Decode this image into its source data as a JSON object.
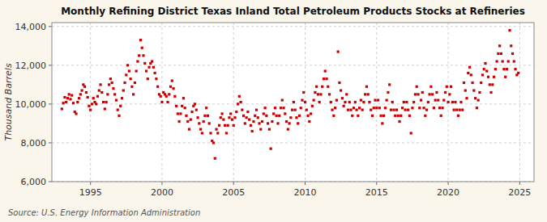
{
  "chart_data": {
    "type": "scatter",
    "title": "Monthly Refining District Texas Inland Total Petroleum Products Stocks at Refineries",
    "y_label": "Thousand Barrels",
    "annotations": [
      "Source: U.S. Energy Information Administration"
    ],
    "color": "#cc0000",
    "marker": "square",
    "grid": true,
    "xlim": [
      1992.3,
      2026.0
    ],
    "ylim": [
      6000,
      14200
    ],
    "xticks": [
      1995,
      2000,
      2005,
      2010,
      2015,
      2020,
      2025
    ],
    "yticks": [
      {
        "value": 6000,
        "label": "6,000"
      },
      {
        "value": 8000,
        "label": "8,000"
      },
      {
        "value": 10000,
        "label": "10,000"
      },
      {
        "value": 12000,
        "label": "12,000"
      },
      {
        "value": 14000,
        "label": "14,000"
      }
    ],
    "x": [
      1993.0,
      1993.1,
      1993.2,
      1993.3,
      1993.4,
      1993.5,
      1993.6,
      1993.7,
      1993.8,
      1993.9,
      1994.0,
      1994.1,
      1994.2,
      1994.3,
      1994.4,
      1994.5,
      1994.6,
      1994.7,
      1994.8,
      1994.9,
      1995.0,
      1995.1,
      1995.2,
      1995.3,
      1995.4,
      1995.5,
      1995.6,
      1995.7,
      1995.8,
      1995.9,
      1996.0,
      1996.1,
      1996.2,
      1996.3,
      1996.4,
      1996.5,
      1996.6,
      1996.7,
      1996.8,
      1996.9,
      1997.0,
      1997.1,
      1997.2,
      1997.3,
      1997.4,
      1997.5,
      1997.6,
      1997.7,
      1997.8,
      1997.9,
      1998.0,
      1998.1,
      1998.2,
      1998.3,
      1998.4,
      1998.5,
      1998.6,
      1998.7,
      1998.8,
      1998.9,
      1999.0,
      1999.1,
      1999.2,
      1999.3,
      1999.4,
      1999.5,
      1999.6,
      1999.7,
      1999.8,
      1999.9,
      2000.0,
      2000.1,
      2000.2,
      2000.3,
      2000.4,
      2000.5,
      2000.6,
      2000.7,
      2000.8,
      2000.9,
      2001.0,
      2001.1,
      2001.2,
      2001.3,
      2001.4,
      2001.5,
      2001.6,
      2001.7,
      2001.8,
      2001.9,
      2002.0,
      2002.1,
      2002.2,
      2002.3,
      2002.4,
      2002.5,
      2002.6,
      2002.7,
      2002.8,
      2002.9,
      2003.0,
      2003.1,
      2003.2,
      2003.3,
      2003.4,
      2003.5,
      2003.6,
      2003.7,
      2003.8,
      2003.9,
      2004.0,
      2004.1,
      2004.2,
      2004.3,
      2004.4,
      2004.5,
      2004.6,
      2004.7,
      2004.8,
      2004.9,
      2005.0,
      2005.1,
      2005.2,
      2005.3,
      2005.4,
      2005.5,
      2005.6,
      2005.7,
      2005.8,
      2005.9,
      2006.0,
      2006.1,
      2006.2,
      2006.3,
      2006.4,
      2006.5,
      2006.6,
      2006.7,
      2006.8,
      2006.9,
      2007.0,
      2007.1,
      2007.2,
      2007.3,
      2007.4,
      2007.5,
      2007.6,
      2007.7,
      2007.8,
      2007.9,
      2008.0,
      2008.1,
      2008.2,
      2008.3,
      2008.4,
      2008.5,
      2008.6,
      2008.7,
      2008.8,
      2008.9,
      2009.0,
      2009.1,
      2009.2,
      2009.3,
      2009.4,
      2009.5,
      2009.6,
      2009.7,
      2009.8,
      2009.9,
      2010.0,
      2010.1,
      2010.2,
      2010.3,
      2010.4,
      2010.5,
      2010.6,
      2010.7,
      2010.8,
      2010.9,
      2011.0,
      2011.1,
      2011.2,
      2011.3,
      2011.4,
      2011.5,
      2011.6,
      2011.7,
      2011.8,
      2011.9,
      2012.0,
      2012.1,
      2012.2,
      2012.3,
      2012.4,
      2012.5,
      2012.6,
      2012.7,
      2012.8,
      2012.9,
      2013.0,
      2013.1,
      2013.2,
      2013.3,
      2013.4,
      2013.5,
      2013.6,
      2013.7,
      2013.8,
      2013.9,
      2014.0,
      2014.1,
      2014.2,
      2014.3,
      2014.4,
      2014.5,
      2014.6,
      2014.7,
      2014.8,
      2014.9,
      2015.0,
      2015.1,
      2015.2,
      2015.3,
      2015.4,
      2015.5,
      2015.6,
      2015.7,
      2015.8,
      2015.9,
      2016.0,
      2016.1,
      2016.2,
      2016.3,
      2016.4,
      2016.5,
      2016.6,
      2016.7,
      2016.8,
      2016.9,
      2017.0,
      2017.1,
      2017.2,
      2017.3,
      2017.4,
      2017.5,
      2017.6,
      2017.7,
      2017.8,
      2017.9,
      2018.0,
      2018.1,
      2018.2,
      2018.3,
      2018.4,
      2018.5,
      2018.6,
      2018.7,
      2018.8,
      2018.9,
      2019.0,
      2019.1,
      2019.2,
      2019.3,
      2019.4,
      2019.5,
      2019.6,
      2019.7,
      2019.8,
      2019.9,
      2020.0,
      2020.1,
      2020.2,
      2020.3,
      2020.4,
      2020.5,
      2020.6,
      2020.7,
      2020.8,
      2020.9,
      2021.0,
      2021.1,
      2021.2,
      2021.3,
      2021.4,
      2021.5,
      2021.6,
      2021.7,
      2021.8,
      2021.9,
      2022.0,
      2022.1,
      2022.2,
      2022.3,
      2022.4,
      2022.5,
      2022.6,
      2022.7,
      2022.8,
      2022.9,
      2023.0,
      2023.1,
      2023.2,
      2023.3,
      2023.4,
      2023.5,
      2023.6,
      2023.7,
      2023.8,
      2023.9,
      2024.0,
      2024.1,
      2024.2,
      2024.3,
      2024.4,
      2024.5,
      2024.6,
      2024.7,
      2024.8,
      2024.9
    ],
    "values": [
      9750,
      10050,
      10350,
      10100,
      10300,
      10500,
      10250,
      10450,
      10050,
      9600,
      9500,
      10100,
      10300,
      10500,
      10700,
      11000,
      10900,
      10600,
      10350,
      9900,
      9700,
      10000,
      10300,
      10100,
      10000,
      10400,
      10700,
      11000,
      10600,
      10100,
      9750,
      10100,
      10500,
      11000,
      11300,
      11100,
      10800,
      10500,
      10200,
      9700,
      9400,
      9900,
      10300,
      10700,
      11100,
      11500,
      12000,
      11700,
      11300,
      10900,
      10500,
      11100,
      11700,
      12200,
      12500,
      13300,
      12900,
      12500,
      12100,
      11700,
      11300,
      11900,
      12100,
      12200,
      11900,
      11600,
      11300,
      10900,
      10500,
      10400,
      10100,
      10600,
      10500,
      10400,
      10100,
      10500,
      10900,
      11200,
      10800,
      10400,
      9900,
      9500,
      9100,
      9500,
      9900,
      10300,
      9800,
      9400,
      9100,
      8700,
      9200,
      9600,
      9900,
      10000,
      9700,
      9300,
      9000,
      8700,
      8500,
      9100,
      9400,
      9800,
      9400,
      9000,
      8500,
      8100,
      8000,
      7200,
      8700,
      8500,
      8900,
      9300,
      9500,
      9200,
      8900,
      8500,
      8900,
      9300,
      9500,
      9200,
      8900,
      9300,
      9600,
      10000,
      10400,
      10100,
      9700,
      9400,
      9000,
      9300,
      9600,
      9200,
      8900,
      8600,
      9100,
      9400,
      9700,
      9300,
      9000,
      8700,
      9100,
      9500,
      9800,
      9400,
      9000,
      8700,
      7700,
      9100,
      9500,
      9800,
      9400,
      9000,
      9400,
      9800,
      10200,
      9800,
      9500,
      9100,
      8700,
      9000,
      9300,
      9700,
      10100,
      9700,
      9300,
      9000,
      9400,
      9800,
      10200,
      10600,
      10100,
      9700,
      9400,
      9100,
      9500,
      9900,
      10200,
      10600,
      10900,
      10500,
      10100,
      10500,
      10900,
      11300,
      11700,
      11300,
      10900,
      10500,
      10100,
      9700,
      9400,
      9800,
      10200,
      12700,
      11100,
      10700,
      10300,
      9900,
      10100,
      10500,
      9700,
      10100,
      9700,
      9400,
      9800,
      10100,
      9700,
      9400,
      9800,
      10200,
      9700,
      10100,
      10500,
      10900,
      10500,
      10100,
      9700,
      9400,
      9800,
      10200,
      9800,
      10200,
      9800,
      9400,
      9000,
      9400,
      9800,
      10200,
      10600,
      11000,
      9700,
      10100,
      9700,
      9400,
      9700,
      9400,
      9100,
      9400,
      9800,
      10100,
      9700,
      10100,
      9700,
      9400,
      8500,
      9800,
      10100,
      10500,
      10900,
      10500,
      9800,
      10200,
      10600,
      9800,
      9400,
      9700,
      10100,
      10500,
      10900,
      10500,
      9800,
      10200,
      10600,
      10200,
      9800,
      9400,
      9800,
      10200,
      10600,
      10900,
      10100,
      10500,
      10900,
      10100,
      9700,
      10100,
      9700,
      9400,
      9700,
      10100,
      9700,
      11100,
      10700,
      10300,
      11600,
      11900,
      11500,
      11100,
      10700,
      10300,
      9800,
      10200,
      10600,
      11100,
      11500,
      11800,
      12100,
      11700,
      11400,
      11000,
      10600,
      11000,
      11400,
      11800,
      12200,
      12600,
      13000,
      12600,
      12200,
      11800,
      11400,
      11800,
      12200,
      13800,
      13000,
      12600,
      12200,
      11800,
      11500,
      11600
    ]
  }
}
